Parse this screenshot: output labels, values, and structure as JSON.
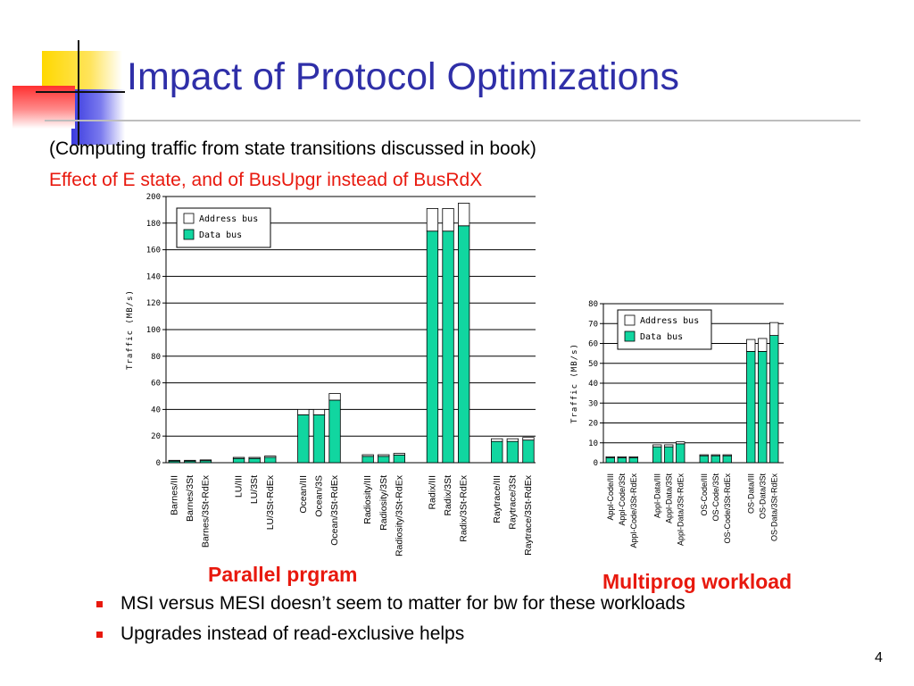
{
  "slide": {
    "title": "Impact of Protocol Optimizations",
    "subtitle": "(Computing traffic from state transitions discussed in book)",
    "highlight": "Effect of E state, and of BusUpgr instead of BusRdX",
    "caption_left": "Parallel prgram",
    "caption_right": "Multiprog workload",
    "bullets": [
      "MSI versus MESI doesn’t seem to matter for bw for these workloads",
      "Upgrades instead of read-exclusive helps"
    ],
    "page_number": "4"
  },
  "colors": {
    "title": "#2f2fa8",
    "accent_red": "#e8190e",
    "data_bus": "#11d6a0",
    "address_bus": "#ffffff",
    "deco_yellow": "#ffd800",
    "deco_red": "#ff3030",
    "deco_blue": "#3a3adf"
  },
  "chart_data": [
    {
      "type": "bar",
      "stacked": true,
      "ylabel": "Traffic (MB/s)",
      "ylim": [
        0,
        200
      ],
      "yticks": [
        0,
        20,
        40,
        60,
        80,
        100,
        120,
        140,
        160,
        180,
        200
      ],
      "grid": true,
      "legend_position": "top-left",
      "groups": [
        {
          "categories": [
            "Barnes/III",
            "Barnes/3St",
            "Barnes/3St-RdEx"
          ]
        },
        {
          "categories": [
            "LU/III",
            "LU/3St",
            "LU/3St-RdEx"
          ]
        },
        {
          "categories": [
            "Ocean/III",
            "Ocean/3S",
            "Ocean/3St-RdEx"
          ]
        },
        {
          "categories": [
            "Radiosity/III",
            "Radiosity/3St",
            "Radiosity/3St-RdEx"
          ]
        },
        {
          "categories": [
            "Radix/III",
            "Radix/3St",
            "Radix/3St-RdEx"
          ]
        },
        {
          "categories": [
            "Raytrace/III",
            "Raytrace/3St",
            "Raytrace/3St-RdEx"
          ]
        }
      ],
      "series": [
        {
          "name": "Data bus",
          "values": [
            1.2,
            1.2,
            1.5,
            3.2,
            3.2,
            4,
            36,
            36,
            47,
            4.8,
            4.8,
            5.8,
            174,
            174,
            178,
            16,
            16,
            17
          ]
        },
        {
          "name": "Address bus",
          "values": [
            0.6,
            0.6,
            0.6,
            0.8,
            0.8,
            1,
            4,
            4,
            5,
            1.2,
            1.2,
            1.2,
            17,
            17,
            17,
            2,
            2,
            2
          ]
        }
      ]
    },
    {
      "type": "bar",
      "stacked": true,
      "ylabel": "Traffic (MB/s)",
      "ylim": [
        0,
        80
      ],
      "yticks": [
        0,
        10,
        20,
        30,
        40,
        50,
        60,
        70,
        80
      ],
      "grid": true,
      "legend_position": "top",
      "groups": [
        {
          "categories": [
            "Appl-Code/III",
            "Appl-Code/3St",
            "Appl-Code/3St-RdEx"
          ]
        },
        {
          "categories": [
            "Appl-Data/III",
            "Appl-Data/3St",
            "Appl-Data/3St-RdEx"
          ]
        },
        {
          "categories": [
            "OS-Code/III",
            "OS-Code/3St",
            "OS-Code/3St-RdEx"
          ]
        },
        {
          "categories": [
            "OS-Data/III",
            "OS-Data/3St",
            "OS-Data/3St-RdEx"
          ]
        }
      ],
      "series": [
        {
          "name": "Data bus",
          "values": [
            2.5,
            2.5,
            2.5,
            8,
            8,
            9.5,
            3.5,
            3.5,
            3.5,
            56,
            56,
            64
          ]
        },
        {
          "name": "Address bus",
          "values": [
            0.5,
            0.5,
            0.5,
            1,
            1,
            1,
            0.5,
            0.5,
            0.5,
            6,
            6.5,
            6.5
          ]
        }
      ]
    }
  ]
}
